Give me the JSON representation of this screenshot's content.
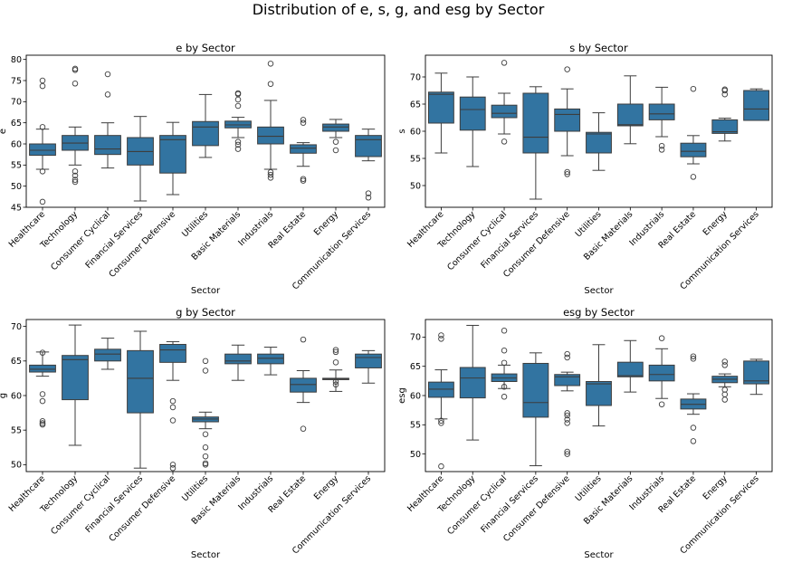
{
  "figure": {
    "title": "Distribution of e, s, g, and esg by Sector",
    "box_color": "#3274a1",
    "line_color": "#3d3d3d"
  },
  "chart_data": [
    {
      "type": "box",
      "title": "e by Sector",
      "xlabel": "Sector",
      "ylabel": "e",
      "ylim": [
        45,
        81
      ],
      "yticks": [
        45,
        50,
        55,
        60,
        65,
        70,
        75,
        80
      ],
      "categories": [
        "Healthcare",
        "Technology",
        "Consumer Cyclical",
        "Financial Services",
        "Consumer Defensive",
        "Utilities",
        "Basic Materials",
        "Industrials",
        "Real Estate",
        "Energy",
        "Communication Services"
      ],
      "boxes": [
        {
          "whislo": 54,
          "q1": 57.3,
          "med": 58.5,
          "q3": 60,
          "whishi": 63.5,
          "fliers": [
            46.3,
            53.5,
            64,
            73.7,
            75
          ]
        },
        {
          "whislo": 55,
          "q1": 58.5,
          "med": 60.2,
          "q3": 62,
          "whishi": 64,
          "fliers": [
            51,
            51.5,
            52.5,
            53.5,
            74.3,
            77.5,
            77.8
          ]
        },
        {
          "whislo": 54.3,
          "q1": 57.5,
          "med": 58.8,
          "q3": 62,
          "whishi": 65,
          "fliers": [
            71.7,
            76.5
          ]
        },
        {
          "whislo": 46.5,
          "q1": 55,
          "med": 58.2,
          "q3": 61.5,
          "whishi": 66.5,
          "fliers": []
        },
        {
          "whislo": 48,
          "q1": 53.1,
          "med": 61,
          "q3": 62,
          "whishi": 65.1,
          "fliers": []
        },
        {
          "whislo": 56.8,
          "q1": 59.6,
          "med": 64,
          "q3": 65.3,
          "whishi": 71.7,
          "fliers": []
        },
        {
          "whislo": 61.5,
          "q1": 63.8,
          "med": 64.5,
          "q3": 65.4,
          "whishi": 66.3,
          "fliers": [
            58.8,
            59.8,
            60.5,
            69,
            70.5,
            71.8,
            72
          ]
        },
        {
          "whislo": 54,
          "q1": 60,
          "med": 61.8,
          "q3": 64,
          "whishi": 70.3,
          "fliers": [
            52,
            52.7,
            53.3,
            74.2,
            79
          ]
        },
        {
          "whislo": 54.7,
          "q1": 57.8,
          "med": 59,
          "q3": 59.8,
          "whishi": 60.3,
          "fliers": [
            51.3,
            51.7,
            65,
            65.7
          ]
        },
        {
          "whislo": 61.5,
          "q1": 63,
          "med": 64,
          "q3": 64.7,
          "whishi": 65.8,
          "fliers": [
            58.5,
            60.5
          ]
        },
        {
          "whislo": 56,
          "q1": 57,
          "med": 61,
          "q3": 62,
          "whishi": 63.5,
          "fliers": [
            47.3,
            48.3
          ]
        }
      ]
    },
    {
      "type": "box",
      "title": "s by Sector",
      "xlabel": "Sector",
      "ylabel": "s",
      "ylim": [
        46,
        74
      ],
      "yticks": [
        50,
        55,
        60,
        65,
        70
      ],
      "categories": [
        "Healthcare",
        "Technology",
        "Consumer Cyclical",
        "Financial Services",
        "Consumer Defensive",
        "Utilities",
        "Basic Materials",
        "Industrials",
        "Real Estate",
        "Energy",
        "Communication Services"
      ],
      "boxes": [
        {
          "whislo": 56,
          "q1": 61.5,
          "med": 66.8,
          "q3": 67.2,
          "whishi": 70.7,
          "fliers": []
        },
        {
          "whislo": 53.5,
          "q1": 60.2,
          "med": 64,
          "q3": 66.3,
          "whishi": 70,
          "fliers": []
        },
        {
          "whislo": 59.5,
          "q1": 62.5,
          "med": 63.3,
          "q3": 64.8,
          "whishi": 67,
          "fliers": [
            58.1,
            72.6
          ]
        },
        {
          "whislo": 47.5,
          "q1": 56,
          "med": 58.9,
          "q3": 67,
          "whishi": 68.2,
          "fliers": []
        },
        {
          "whislo": 55.5,
          "q1": 60,
          "med": 63.1,
          "q3": 64.1,
          "whishi": 67.8,
          "fliers": [
            52.1,
            52.5,
            71.4
          ]
        },
        {
          "whislo": 52.8,
          "q1": 56,
          "med": 59.5,
          "q3": 59.8,
          "whishi": 63.4,
          "fliers": []
        },
        {
          "whislo": 57.7,
          "q1": 61,
          "med": 61.2,
          "q3": 65,
          "whishi": 70.2,
          "fliers": []
        },
        {
          "whislo": 59,
          "q1": 62.1,
          "med": 63.2,
          "q3": 65,
          "whishi": 68.1,
          "fliers": [
            56.6,
            57.3
          ]
        },
        {
          "whislo": 54,
          "q1": 55.3,
          "med": 56.3,
          "q3": 57.8,
          "whishi": 59.2,
          "fliers": [
            51.6,
            67.8
          ]
        },
        {
          "whislo": 58.2,
          "q1": 59.6,
          "med": 59.9,
          "q3": 62.1,
          "whishi": 62.4,
          "fliers": [
            66.8,
            67.5,
            67.7
          ]
        },
        {
          "whislo": 62,
          "q1": 62,
          "med": 64.1,
          "q3": 67.5,
          "whishi": 67.8,
          "fliers": []
        }
      ]
    },
    {
      "type": "box",
      "title": "g by Sector",
      "xlabel": "Sector",
      "ylabel": "g",
      "ylim": [
        49,
        71
      ],
      "yticks": [
        50,
        55,
        60,
        65,
        70
      ],
      "categories": [
        "Healthcare",
        "Technology",
        "Consumer Cyclical",
        "Financial Services",
        "Consumer Defensive",
        "Utilities",
        "Basic Materials",
        "Industrials",
        "Real Estate",
        "Energy",
        "Communication Services"
      ],
      "boxes": [
        {
          "whislo": 62.8,
          "q1": 63.4,
          "med": 63.8,
          "q3": 64.4,
          "whishi": 66.3,
          "fliers": [
            55.8,
            56,
            56.3,
            59.2,
            60.2,
            66.2
          ]
        },
        {
          "whislo": 52.8,
          "q1": 59.4,
          "med": 65.2,
          "q3": 65.8,
          "whishi": 70.2,
          "fliers": []
        },
        {
          "whislo": 63.8,
          "q1": 65,
          "med": 66,
          "q3": 66.7,
          "whishi": 68.3,
          "fliers": []
        },
        {
          "whislo": 49.5,
          "q1": 57.5,
          "med": 62.5,
          "q3": 66.5,
          "whishi": 69.3,
          "fliers": []
        },
        {
          "whislo": 62.2,
          "q1": 64.8,
          "med": 66.6,
          "q3": 67.4,
          "whishi": 67.8,
          "fliers": [
            49.5,
            50,
            56.4,
            58.3,
            59.2
          ]
        },
        {
          "whislo": 55.2,
          "q1": 56.2,
          "med": 56.6,
          "q3": 56.9,
          "whishi": 57.6,
          "fliers": [
            50,
            50.2,
            51.2,
            52.5,
            54.4,
            63.6,
            65
          ]
        },
        {
          "whislo": 62.2,
          "q1": 64.6,
          "med": 65,
          "q3": 66,
          "whishi": 67.3,
          "fliers": []
        },
        {
          "whislo": 63,
          "q1": 64.6,
          "med": 65.4,
          "q3": 66,
          "whishi": 67,
          "fliers": []
        },
        {
          "whislo": 59,
          "q1": 60.5,
          "med": 61.6,
          "q3": 62.5,
          "whishi": 63.6,
          "fliers": [
            55.2,
            68.1
          ]
        },
        {
          "whislo": 60.6,
          "q1": 62.3,
          "med": 62.4,
          "q3": 62.5,
          "whishi": 63.7,
          "fliers": [
            61.6,
            62,
            64.8,
            66.3,
            66.6
          ]
        },
        {
          "whislo": 61.8,
          "q1": 64,
          "med": 65.5,
          "q3": 66,
          "whishi": 66.5,
          "fliers": []
        }
      ]
    },
    {
      "type": "box",
      "title": "esg by Sector",
      "xlabel": "Sector",
      "ylabel": "esg",
      "ylim": [
        47,
        73
      ],
      "yticks": [
        50,
        55,
        60,
        65,
        70
      ],
      "categories": [
        "Healthcare",
        "Technology",
        "Consumer Cyclical",
        "Financial Services",
        "Consumer Defensive",
        "Utilities",
        "Basic Materials",
        "Industrials",
        "Real Estate",
        "Energy",
        "Communication Services"
      ],
      "boxes": [
        {
          "whislo": 56,
          "q1": 59.7,
          "med": 61.1,
          "q3": 62.3,
          "whishi": 64.4,
          "fliers": [
            47.9,
            55.3,
            55.7,
            69.7,
            70.3
          ]
        },
        {
          "whislo": 52.4,
          "q1": 59.6,
          "med": 63,
          "q3": 64.8,
          "whishi": 72,
          "fliers": []
        },
        {
          "whislo": 61.2,
          "q1": 62.4,
          "med": 63,
          "q3": 63.7,
          "whishi": 65.2,
          "fliers": [
            59.8,
            61.5,
            65.6,
            67.7,
            71.1
          ]
        },
        {
          "whislo": 48,
          "q1": 56.3,
          "med": 58.8,
          "q3": 65.5,
          "whishi": 67.3,
          "fliers": []
        },
        {
          "whislo": 60.8,
          "q1": 61.7,
          "med": 63.2,
          "q3": 63.6,
          "whishi": 64,
          "fliers": [
            50,
            50.4,
            55.3,
            55.9,
            56.6,
            57,
            66.5,
            67.1
          ]
        },
        {
          "whislo": 54.8,
          "q1": 58.3,
          "med": 62,
          "q3": 62.4,
          "whishi": 68.7,
          "fliers": []
        },
        {
          "whislo": 60.6,
          "q1": 63.2,
          "med": 63.4,
          "q3": 65.7,
          "whishi": 69.4,
          "fliers": []
        },
        {
          "whislo": 59.5,
          "q1": 62.5,
          "med": 63.6,
          "q3": 65.2,
          "whishi": 68,
          "fliers": [
            58.5,
            69.8
          ]
        },
        {
          "whislo": 56.8,
          "q1": 57.7,
          "med": 58.5,
          "q3": 59.4,
          "whishi": 60.3,
          "fliers": [
            52.2,
            54.5,
            66.3,
            66.7
          ]
        },
        {
          "whislo": 61.5,
          "q1": 62.2,
          "med": 62.8,
          "q3": 63.3,
          "whishi": 63.7,
          "fliers": [
            59.3,
            60.2,
            61,
            65.2,
            65.8
          ]
        },
        {
          "whislo": 60.2,
          "q1": 62,
          "med": 62.5,
          "q3": 65.9,
          "whishi": 66.2,
          "fliers": []
        }
      ]
    }
  ]
}
